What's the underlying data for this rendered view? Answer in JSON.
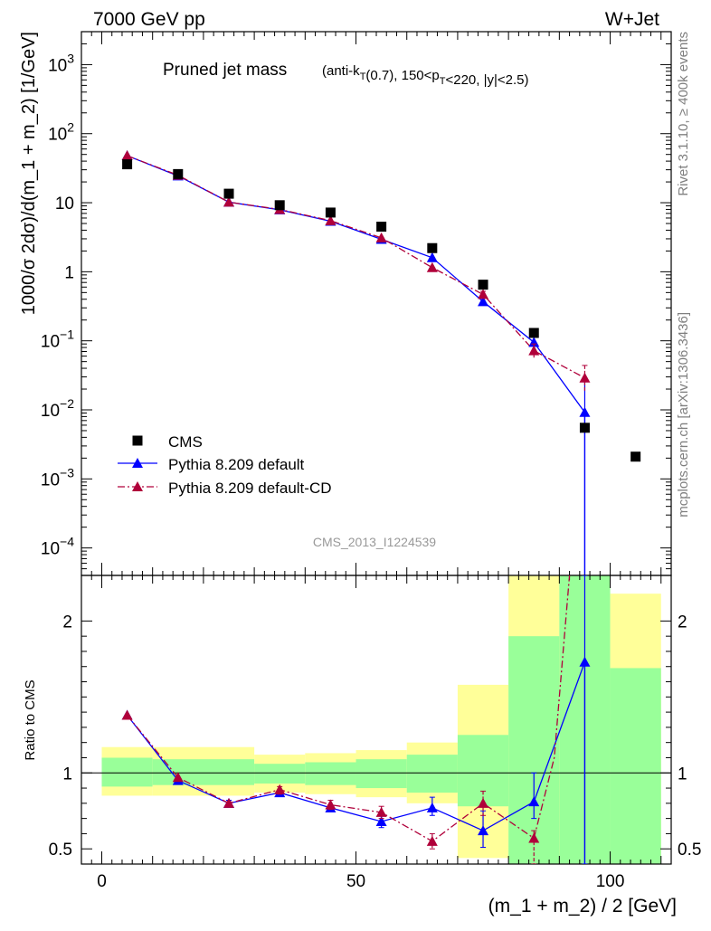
{
  "header": {
    "left": "7000 GeV pp",
    "right": "W+Jet"
  },
  "side_labels": {
    "rivet": "Rivet 3.1.10, ≥ 400k events",
    "site": "mcplots.cern.ch [arXiv:1306.3436]"
  },
  "chart_data": [
    {
      "type": "scatter",
      "panel": "main",
      "title": "Pruned jet mass",
      "subtitle": "(anti-k_T(0.7), 150<p_T<220, |y|<2.5)",
      "ylabel": "1000/σ 2dσ)/d(m_1 + m_2) [1/GeV]",
      "watermark": "CMS_2013_I1224539",
      "scale_y": "log",
      "xlim": [
        -4,
        112
      ],
      "ylim": [
        4e-05,
        3000
      ],
      "y_ticks": [
        {
          "v": 0.0001,
          "m": "10",
          "e": "−4"
        },
        {
          "v": 0.001,
          "m": "10",
          "e": "−3"
        },
        {
          "v": 0.01,
          "m": "10",
          "e": "−2"
        },
        {
          "v": 0.1,
          "m": "10",
          "e": "−1"
        },
        {
          "v": 1,
          "m": "1",
          "e": ""
        },
        {
          "v": 10,
          "m": "10",
          "e": ""
        },
        {
          "v": 100,
          "m": "10",
          "e": "2"
        },
        {
          "v": 1000,
          "m": "10",
          "e": "3"
        }
      ],
      "legend_position": "middle-left",
      "series": [
        {
          "name": "CMS",
          "style": "square",
          "color": "#000000",
          "x": [
            5,
            15,
            25,
            35,
            45,
            55,
            65,
            75,
            85,
            95,
            105
          ],
          "y": [
            36,
            26,
            13.5,
            9.2,
            7.2,
            4.5,
            2.2,
            0.65,
            0.13,
            0.0055,
            0.0021
          ]
        },
        {
          "name": "Pythia 8.209 default",
          "style": "line-triangle",
          "color": "#0000ff",
          "x": [
            5,
            15,
            25,
            35,
            45,
            55,
            65,
            75,
            85,
            95
          ],
          "y": [
            48,
            24.5,
            10.2,
            7.9,
            5.4,
            2.95,
            1.6,
            0.37,
            0.095,
            0.0092
          ],
          "err_hi": [
            null,
            null,
            null,
            null,
            null,
            null,
            null,
            null,
            null,
            0.028
          ],
          "err_lo": [
            null,
            null,
            null,
            null,
            null,
            null,
            null,
            null,
            null,
            1e-05
          ]
        },
        {
          "name": "Pythia 8.209 default-CD",
          "style": "dashdot-triangle",
          "color": "#b0003a",
          "x": [
            5,
            15,
            25,
            35,
            45,
            55,
            65,
            75,
            85,
            95
          ],
          "y": [
            48,
            25,
            10.2,
            8.0,
            5.5,
            3.1,
            1.15,
            0.47,
            0.072,
            0.029
          ],
          "err_hi": [
            null,
            null,
            null,
            null,
            null,
            null,
            null,
            0.52,
            0.09,
            0.044
          ],
          "err_lo": [
            null,
            null,
            null,
            null,
            null,
            null,
            null,
            0.42,
            0.057,
            0.019
          ]
        }
      ]
    },
    {
      "type": "line",
      "panel": "ratio",
      "ylabel": "Ratio to CMS",
      "xlabel": "(m_1 + m_2) / 2 [GeV]",
      "xlim": [
        -4,
        112
      ],
      "ylim": [
        0.4,
        2.3
      ],
      "x_ticks": [
        0,
        50,
        100
      ],
      "y_ticks": [
        "0.5",
        "1",
        "2"
      ],
      "y_tick_values": [
        0.5,
        1,
        2
      ],
      "bands": [
        {
          "x0": 0,
          "x1": 10,
          "y1_lo": 0.91,
          "y1_hi": 1.1,
          "y2_lo": 0.85,
          "y2_hi": 1.17
        },
        {
          "x0": 10,
          "x1": 30,
          "y1_lo": 0.92,
          "y1_hi": 1.09,
          "y2_lo": 0.85,
          "y2_hi": 1.17
        },
        {
          "x0": 30,
          "x1": 40,
          "y1_lo": 0.93,
          "y1_hi": 1.06,
          "y2_lo": 0.87,
          "y2_hi": 1.12
        },
        {
          "x0": 40,
          "x1": 50,
          "y1_lo": 0.92,
          "y1_hi": 1.07,
          "y2_lo": 0.86,
          "y2_hi": 1.13
        },
        {
          "x0": 50,
          "x1": 60,
          "y1_lo": 0.9,
          "y1_hi": 1.09,
          "y2_lo": 0.84,
          "y2_hi": 1.15
        },
        {
          "x0": 60,
          "x1": 70,
          "y1_lo": 0.87,
          "y1_hi": 1.12,
          "y2_lo": 0.8,
          "y2_hi": 1.2
        },
        {
          "x0": 70,
          "x1": 80,
          "y1_lo": 0.78,
          "y1_hi": 1.25,
          "y2_lo": 0.44,
          "y2_hi": 1.58
        },
        {
          "x0": 80,
          "x1": 90,
          "y1_lo": 0.4,
          "y1_hi": 1.9,
          "y2_lo": 0.4,
          "y2_hi": 2.3
        },
        {
          "x0": 90,
          "x1": 100,
          "y1_lo": 0.4,
          "y1_hi": 2.3,
          "y2_lo": 0.4,
          "y2_hi": 2.3
        },
        {
          "x0": 100,
          "x1": 110,
          "y1_lo": 0.4,
          "y1_hi": 1.69,
          "y2_lo": 0.4,
          "y2_hi": 2.18
        }
      ],
      "series": [
        {
          "name": "Pythia 8.209 default",
          "style": "line-triangle",
          "color": "#0000ff",
          "x": [
            5,
            15,
            25,
            35,
            45,
            55,
            65,
            75,
            85,
            95
          ],
          "y": [
            1.38,
            0.95,
            0.8,
            0.87,
            0.77,
            0.68,
            0.77,
            0.62,
            0.81,
            1.73
          ],
          "err_hi": [
            null,
            null,
            0.82,
            0.89,
            0.79,
            0.72,
            0.84,
            0.75,
            1.0,
            2.3
          ],
          "err_lo": [
            null,
            null,
            0.78,
            0.85,
            0.75,
            0.64,
            0.72,
            0.51,
            0.7,
            0.4
          ]
        },
        {
          "name": "Pythia 8.209 default-CD",
          "style": "dashdot-triangle",
          "color": "#b0003a",
          "x": [
            5,
            15,
            25,
            35,
            45,
            55,
            65,
            75,
            85,
            89,
            92
          ],
          "y": [
            1.38,
            0.97,
            0.8,
            0.89,
            0.79,
            0.74,
            0.55,
            0.8,
            0.57,
            1.1,
            2.3
          ],
          "marker": [
            true,
            true,
            true,
            true,
            true,
            true,
            true,
            true,
            true,
            false,
            false
          ],
          "err_hi": [
            null,
            null,
            0.81,
            0.91,
            0.82,
            0.78,
            0.6,
            0.88,
            0.62,
            null,
            null
          ],
          "err_lo": [
            null,
            null,
            0.78,
            0.86,
            0.76,
            0.7,
            0.5,
            0.72,
            0.4,
            null,
            null
          ]
        }
      ]
    }
  ]
}
